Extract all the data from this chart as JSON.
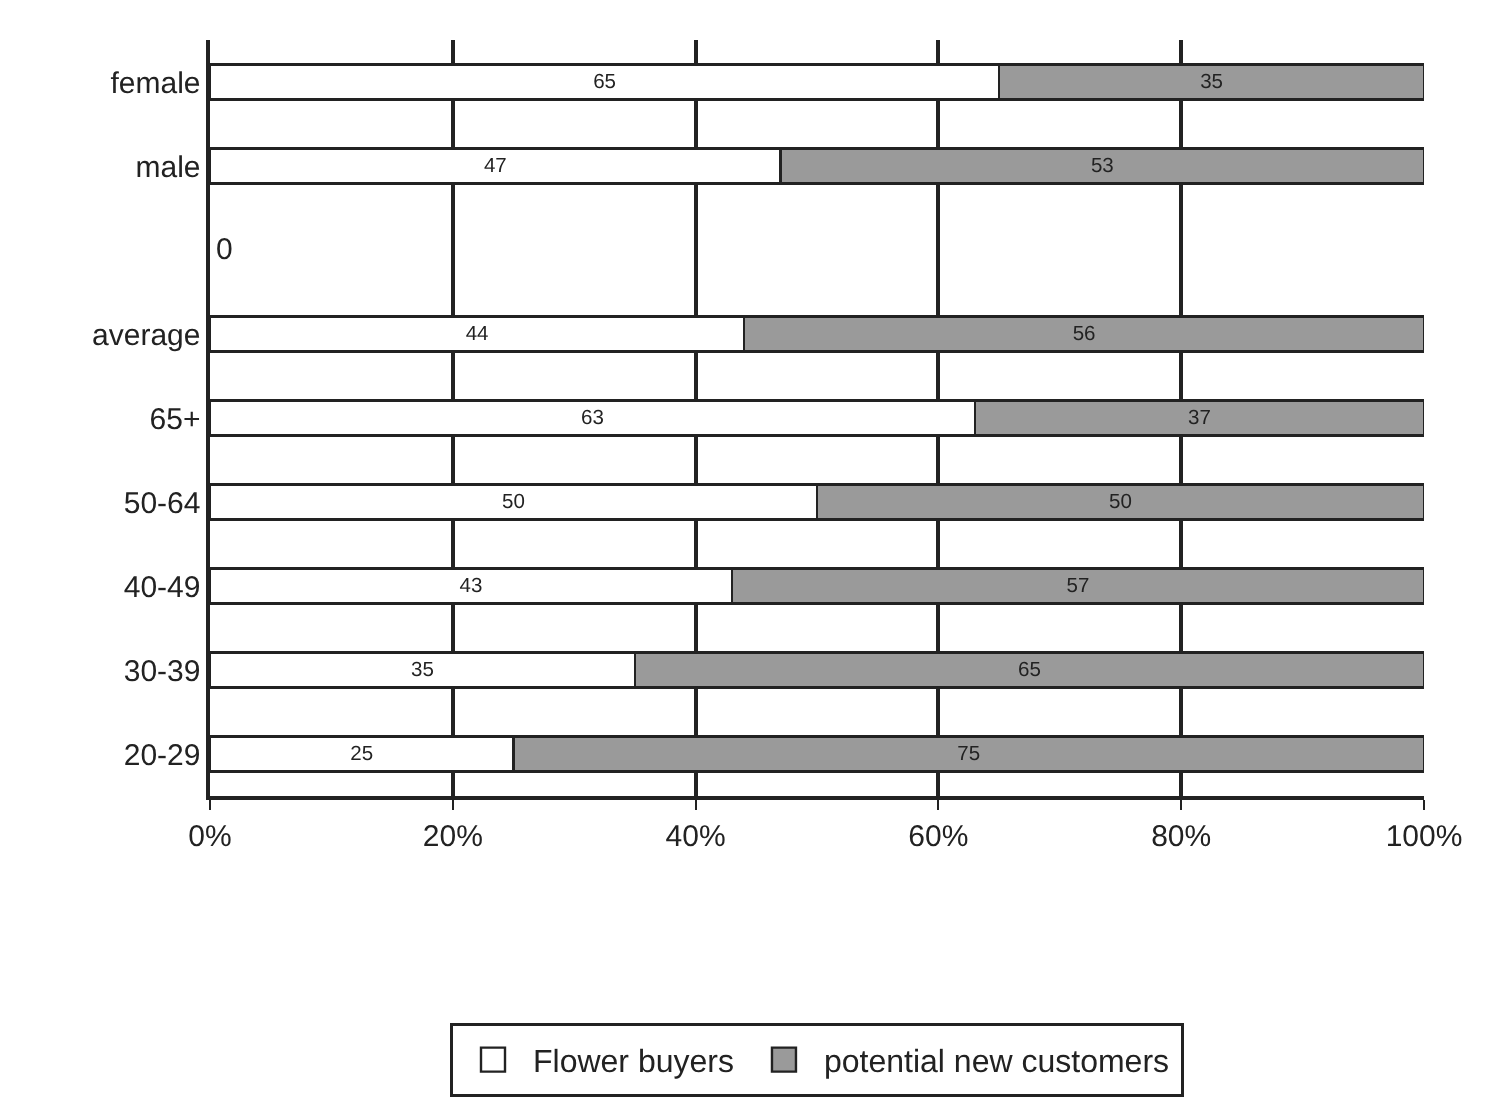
{
  "chart_data": {
    "type": "bar",
    "orientation": "horizontal",
    "stacked": true,
    "categories": [
      "female",
      "male",
      null,
      "average",
      "65+",
      "50-64",
      "40-49",
      "30-39",
      "20-29"
    ],
    "series": [
      {
        "name": "Flower buyers",
        "color": "#ffffff",
        "values": [
          65,
          47,
          0,
          44,
          63,
          50,
          43,
          35,
          25
        ]
      },
      {
        "name": "potential new customers",
        "color": "#9a9a9a",
        "values": [
          35,
          53,
          null,
          56,
          37,
          50,
          57,
          65,
          75
        ]
      }
    ],
    "xlim": [
      0,
      100
    ],
    "xticks": [
      {
        "value": 0,
        "label": "0%"
      },
      {
        "value": 20,
        "label": "20%"
      },
      {
        "value": 40,
        "label": "40%"
      },
      {
        "value": 60,
        "label": "60%"
      },
      {
        "value": 80,
        "label": "80%"
      },
      {
        "value": 100,
        "label": "100%"
      }
    ],
    "grid": "x",
    "legend": "bottom",
    "data_labels": true
  }
}
